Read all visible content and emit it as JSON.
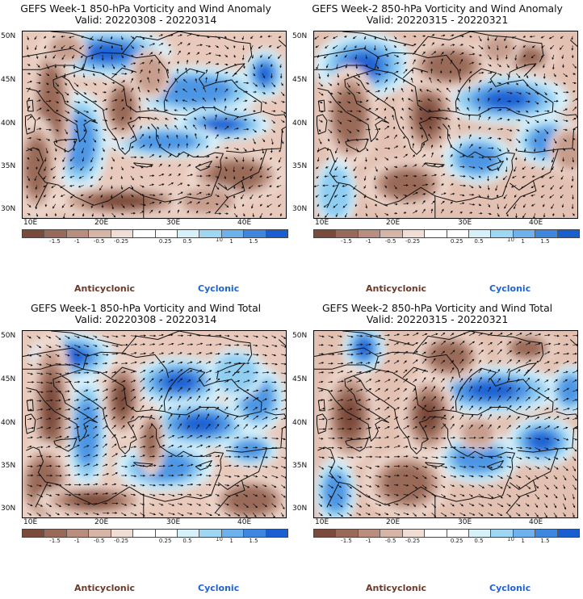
{
  "colors": {
    "anticyclonic_label": "#6b3a2a",
    "cyclonic_label": "#1e63d6",
    "scale": [
      "#7a4a3a",
      "#9a6a58",
      "#b98e7e",
      "#d6b4a6",
      "#f0ddd4",
      "#ffffff",
      "#ffffff",
      "#d7f1fb",
      "#9fd7f3",
      "#6fb1ec",
      "#3d87e0",
      "#1a5fd2"
    ]
  },
  "colorbar_ticks": [
    "-1.5",
    "-1",
    "-0.5",
    "-0.25",
    "0.25",
    "0.5",
    "1",
    "1.5"
  ],
  "scale_note": "10",
  "legend": {
    "anticyclonic": "Anticyclonic",
    "cyclonic": "Cyclonic"
  },
  "lat_labels": [
    "50N",
    "45N",
    "40N",
    "35N",
    "30N"
  ],
  "lon_labels": [
    "10E",
    "20E",
    "30E",
    "40E"
  ],
  "panels": [
    {
      "title": "GEFS Week-1 850-hPa Vorticity and Wind Anomaly",
      "valid": "Valid: 20220308 - 20220314"
    },
    {
      "title": "GEFS Week-2 850-hPa Vorticity and Wind Anomaly",
      "valid": "Valid: 20220315 - 20220321"
    },
    {
      "title": "GEFS Week-1 850-hPa Vorticity and Wind Total",
      "valid": "Valid: 20220308 - 20220314"
    },
    {
      "title": "GEFS Week-2 850-hPa Vorticity and Wind Total",
      "valid": "Valid: 20220315 - 20220321"
    }
  ]
}
